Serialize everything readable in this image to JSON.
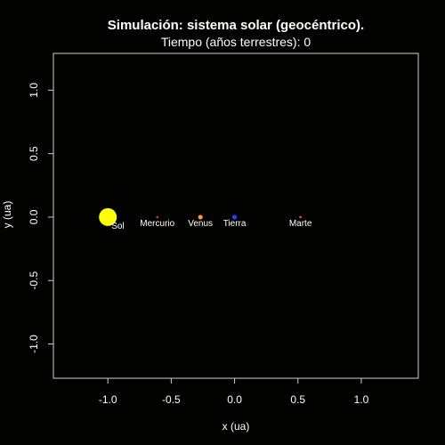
{
  "chart_data": {
    "type": "scatter",
    "title": "Simulación: sistema solar (geocéntrico).",
    "subtitle": "Tiempo (años terrestres): 0",
    "xlabel": "x (ua)",
    "ylabel": "y (ua)",
    "xlim": [
      -1.43,
      1.45
    ],
    "ylim": [
      -1.27,
      1.29
    ],
    "xticks": [
      -1.0,
      -0.5,
      0.0,
      0.5,
      1.0
    ],
    "xtick_labels": [
      "-1.0",
      "-0.5",
      "0.0",
      "0.5",
      "1.0"
    ],
    "yticks": [
      -1.0,
      -0.5,
      0.0,
      0.5,
      1.0
    ],
    "ytick_labels": [
      "-1.0",
      "-0.5",
      "0.0",
      "0.5",
      "1.0"
    ],
    "grid": false,
    "background": "#020300",
    "frame_color": "#cfcfcf",
    "points": [
      {
        "name": "Sol",
        "x": -1.0,
        "y": 0.0,
        "color": "#ffff00",
        "size": "large"
      },
      {
        "name": "Mercurio",
        "x": -0.61,
        "y": 0.0,
        "color": "#d62f2f",
        "size": "tiny"
      },
      {
        "name": "Venus",
        "x": -0.27,
        "y": 0.0,
        "color": "#ff9a2e",
        "size": "small"
      },
      {
        "name": "Tierra",
        "x": 0.0,
        "y": 0.0,
        "color": "#2f3cff",
        "size": "small"
      },
      {
        "name": "Marte",
        "x": 0.52,
        "y": 0.0,
        "color": "#ff4f4f",
        "size": "tiny"
      }
    ]
  }
}
